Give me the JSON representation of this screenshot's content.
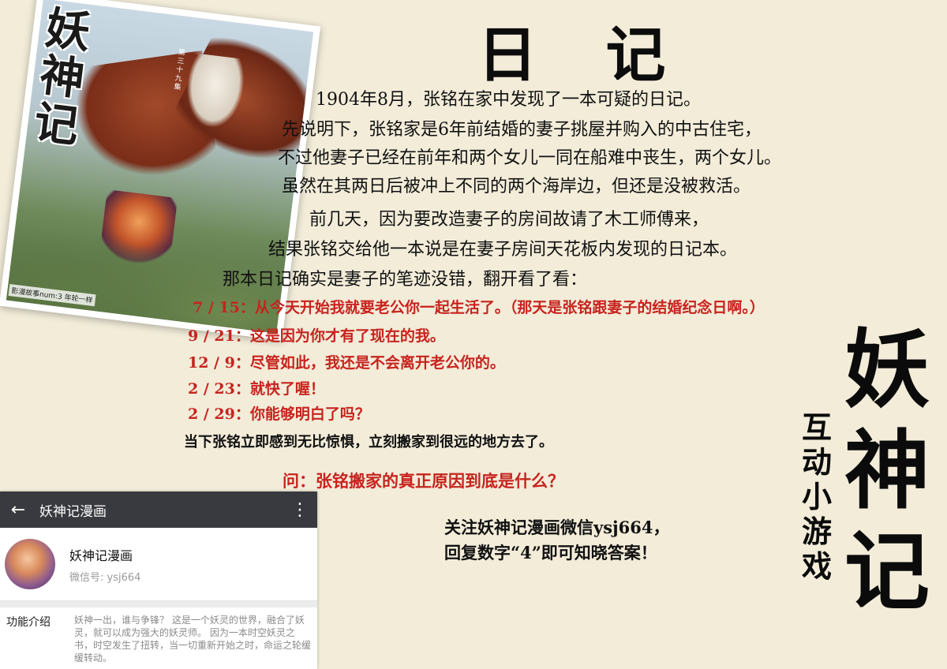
{
  "cover": {
    "title": "妖\n神\n记",
    "side_text": "第三十九集",
    "footer": "影漫故事num:3 年轮一样"
  },
  "title": "日 记",
  "story": [
    "1904年8月，张铭在家中发现了一本可疑的日记。",
    "先说明下，张铭家是6年前结婚的妻子挑屋并购入的中古住宅，",
    "不过他妻子已经在前年和两个女儿一同在船难中丧生，两个女儿。",
    "虽然在其两日后被冲上不同的两个海岸边，但还是没被救活。",
    "前几天，因为要改造妻子的房间故请了木工师傅来，",
    "结果张铭交给他一本说是在妻子房间天花板内发现的日记本。",
    "那本日记确实是妻子的笔迹没错，翻开看了看："
  ],
  "diary": [
    "7 / 15：从今天开始我就要老公你一起生活了。（那天是张铭跟妻子的结婚纪念日啊。）",
    "9 / 21：这是因为你才有了现在的我。",
    "12 / 9：尽管如此，我还是不会离开老公你的。",
    "2 / 23：就快了喔！",
    "2 / 29：你能够明白了吗？"
  ],
  "ending": "当下张铭立即感到无比惊惧，立刻搬家到很远的地方去了。",
  "question": "问：张铭搬家的真正原因到底是什么？",
  "follow": [
    "关注妖神记漫画微信ysj664，",
    "回复数字“4”即可知晓答案！"
  ],
  "brand": {
    "big": "妖神记",
    "small": "互动小游戏"
  },
  "phone": {
    "title": "妖神记漫画",
    "profile_name": "妖神记漫画",
    "profile_id": "微信号: ysj664",
    "intro_label": "功能介绍",
    "intro_text": "妖神一出，谁与争锋？ 这是一个妖灵的世界，融合了妖灵，就可以成为强大的妖灵师。 因为一本时空妖灵之书，时空发生了扭转，当一切重新开始之时，命运之轮缓缓转动。"
  },
  "colors": {
    "background": "#f2ecd9",
    "diary_red": "#c8231e",
    "wechat_bar": "#393a3f"
  }
}
